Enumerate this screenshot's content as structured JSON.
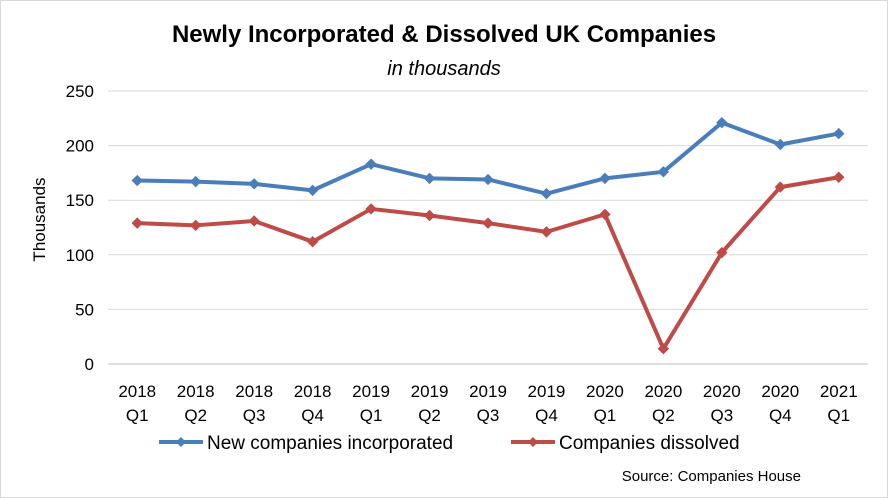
{
  "chart_data": {
    "type": "line",
    "title": "Newly Incorporated & Dissolved UK Companies",
    "subtitle": "in thousands",
    "ylabel": "Thousands",
    "xlabel": "",
    "ylim": [
      0,
      250
    ],
    "yticks": [
      0,
      50,
      100,
      150,
      200,
      250
    ],
    "categories": [
      [
        "2018",
        "Q1"
      ],
      [
        "2018",
        "Q2"
      ],
      [
        "2018",
        "Q3"
      ],
      [
        "2018",
        "Q4"
      ],
      [
        "2019",
        "Q1"
      ],
      [
        "2019",
        "Q2"
      ],
      [
        "2019",
        "Q3"
      ],
      [
        "2019",
        "Q4"
      ],
      [
        "2020",
        "Q1"
      ],
      [
        "2020",
        "Q2"
      ],
      [
        "2020",
        "Q3"
      ],
      [
        "2020",
        "Q4"
      ],
      [
        "2021",
        "Q1"
      ]
    ],
    "series": [
      {
        "name": "New companies incorporated",
        "color": "#4a7ebb",
        "values": [
          168,
          167,
          165,
          159,
          183,
          170,
          169,
          156,
          170,
          176,
          221,
          201,
          211
        ]
      },
      {
        "name": "Companies dissolved",
        "color": "#be4b48",
        "values": [
          129,
          127,
          131,
          112,
          142,
          136,
          129,
          121,
          137,
          14,
          102,
          162,
          171
        ]
      }
    ],
    "grid": true,
    "legend_position": "bottom",
    "marker": "diamond"
  },
  "source_note": "Source: Companies House"
}
